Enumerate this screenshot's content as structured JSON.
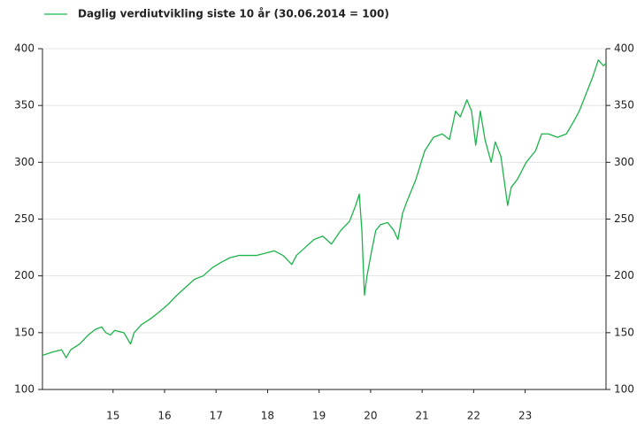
{
  "chart_data": {
    "type": "line",
    "series": [
      {
        "name": "Daglig verdiutvikling siste 10 år (30.06.2014 = 100)",
        "color": "#1db34a",
        "x": [
          2013.63,
          2013.83,
          2014.0,
          2014.09,
          2014.18,
          2014.35,
          2014.52,
          2014.66,
          2014.78,
          2014.86,
          2014.95,
          2015.03,
          2015.21,
          2015.34,
          2015.41,
          2015.55,
          2015.72,
          2015.89,
          2016.07,
          2016.24,
          2016.41,
          2016.58,
          2016.75,
          2016.92,
          2017.1,
          2017.27,
          2017.44,
          2017.61,
          2017.78,
          2017.96,
          2018.13,
          2018.3,
          2018.47,
          2018.56,
          2018.73,
          2018.9,
          2019.07,
          2019.24,
          2019.42,
          2019.59,
          2019.71,
          2019.78,
          2019.83,
          2019.88,
          2019.93,
          2020.02,
          2020.1,
          2020.19,
          2020.33,
          2020.45,
          2020.53,
          2020.62,
          2020.7,
          2020.88,
          2021.05,
          2021.22,
          2021.39,
          2021.53,
          2021.65,
          2021.74,
          2021.87,
          2021.96,
          2022.04,
          2022.13,
          2022.22,
          2022.34,
          2022.42,
          2022.53,
          2022.59,
          2022.66,
          2022.73,
          2022.85,
          2023.02,
          2023.2,
          2023.32,
          2023.45,
          2023.63,
          2023.8,
          2023.93,
          2024.05,
          2024.18,
          2024.31,
          2024.42,
          2024.52,
          2024.57
        ],
        "values": [
          130,
          133,
          135,
          128,
          135,
          140,
          148,
          153,
          155,
          150,
          148,
          152,
          150,
          140,
          150,
          157,
          162,
          168,
          175,
          183,
          190,
          197,
          200,
          207,
          212,
          216,
          218,
          218,
          218,
          220,
          222,
          218,
          210,
          218,
          225,
          232,
          235,
          228,
          240,
          248,
          262,
          272,
          240,
          183,
          200,
          222,
          240,
          245,
          247,
          240,
          232,
          255,
          265,
          285,
          310,
          322,
          325,
          320,
          345,
          340,
          355,
          345,
          315,
          345,
          320,
          300,
          318,
          305,
          285,
          262,
          278,
          285,
          300,
          310,
          325,
          325,
          322,
          325,
          335,
          345,
          360,
          375,
          390,
          385,
          387
        ]
      }
    ],
    "xlim": [
      2013.63,
      2024.57
    ],
    "xticks": [
      {
        "value": 2015,
        "label": "15"
      },
      {
        "value": 2016,
        "label": "16"
      },
      {
        "value": 2017,
        "label": "17"
      },
      {
        "value": 2018,
        "label": "18"
      },
      {
        "value": 2019,
        "label": "19"
      },
      {
        "value": 2020,
        "label": "20"
      },
      {
        "value": 2021,
        "label": "21"
      },
      {
        "value": 2022,
        "label": "22"
      },
      {
        "value": 2023,
        "label": "23"
      }
    ],
    "ylim": [
      100,
      400
    ],
    "yticks": [
      100,
      150,
      200,
      250,
      300,
      350,
      400
    ],
    "grid": true,
    "legend": "top-left"
  }
}
